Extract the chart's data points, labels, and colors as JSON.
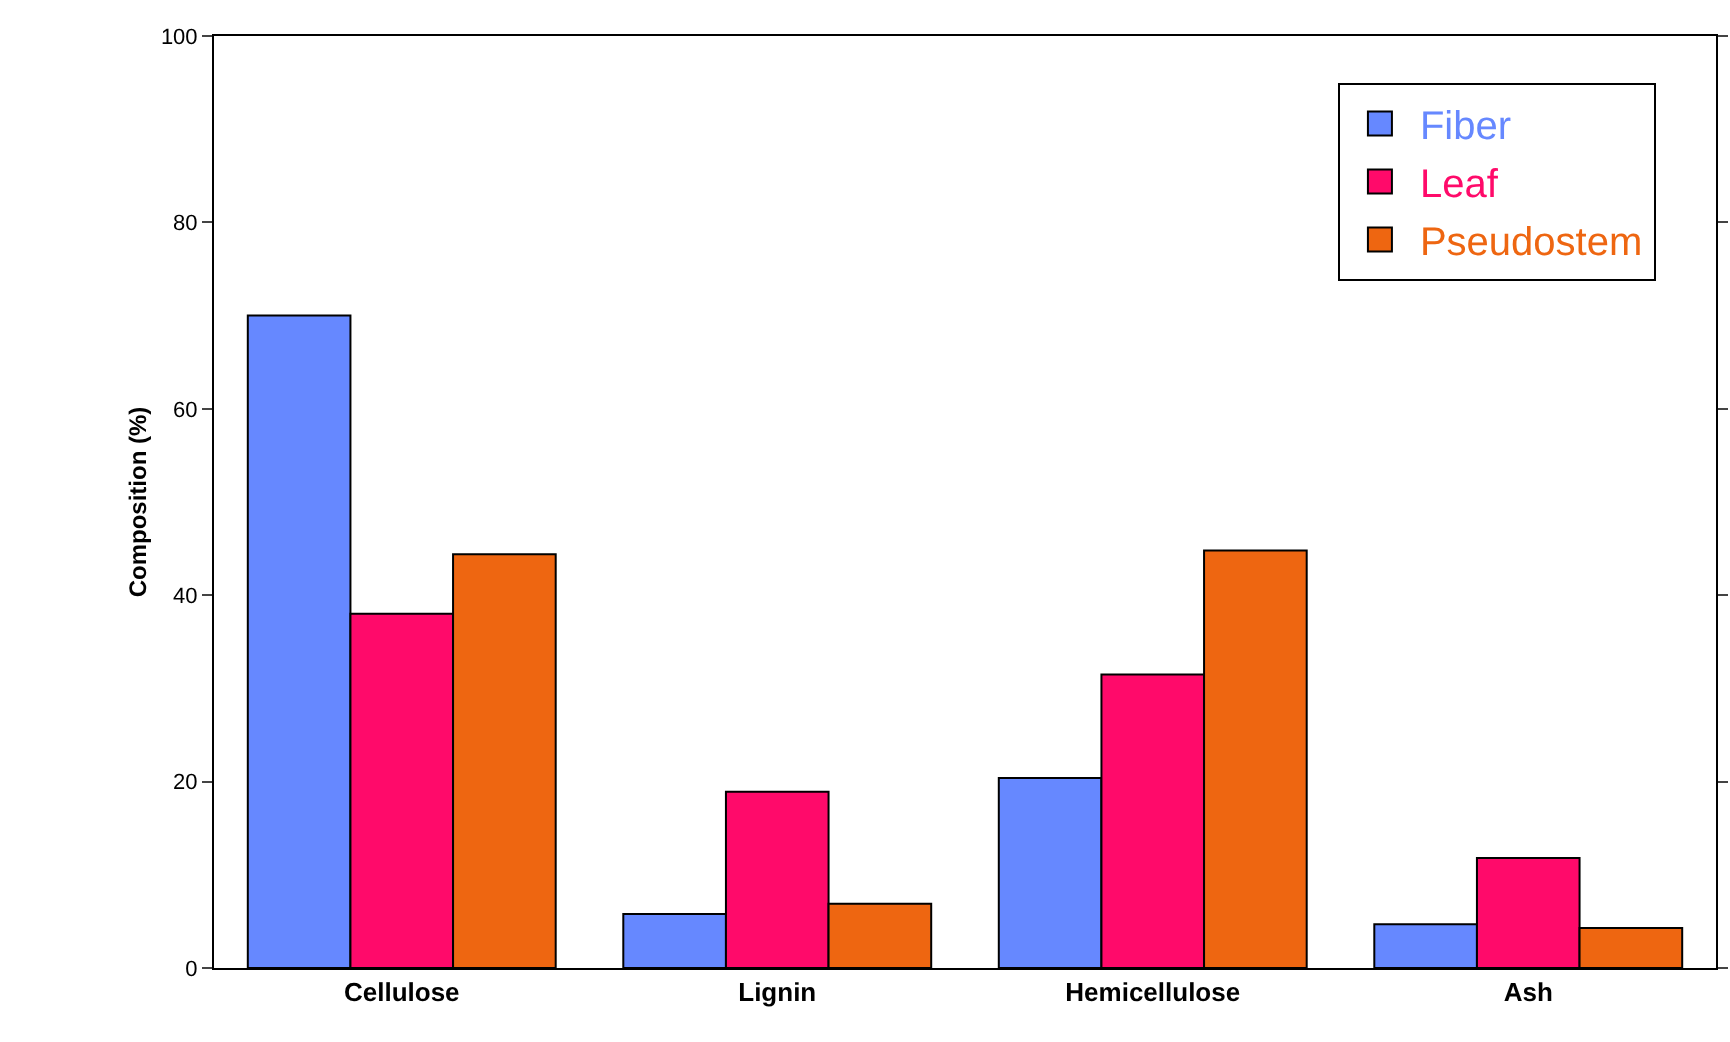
{
  "chart_data": {
    "type": "bar",
    "ylabel": "Composition (%)",
    "categories": [
      "Cellulose",
      "Lignin",
      "Hemicellulose",
      "Ash"
    ],
    "series": [
      {
        "name": "Fiber",
        "color": "#6688ff",
        "values": [
          70,
          5.8,
          20.4,
          4.7
        ]
      },
      {
        "name": "Leaf",
        "color": "#ff0a6a",
        "values": [
          38,
          18.9,
          31.5,
          11.8
        ]
      },
      {
        "name": "Pseudostem",
        "color": "#ee6611",
        "values": [
          44.4,
          6.9,
          44.8,
          4.3
        ]
      }
    ],
    "ylim": [
      0,
      100
    ],
    "yticks": [
      0,
      20,
      40,
      60,
      80,
      100
    ],
    "grid": false,
    "legend": "top right"
  }
}
